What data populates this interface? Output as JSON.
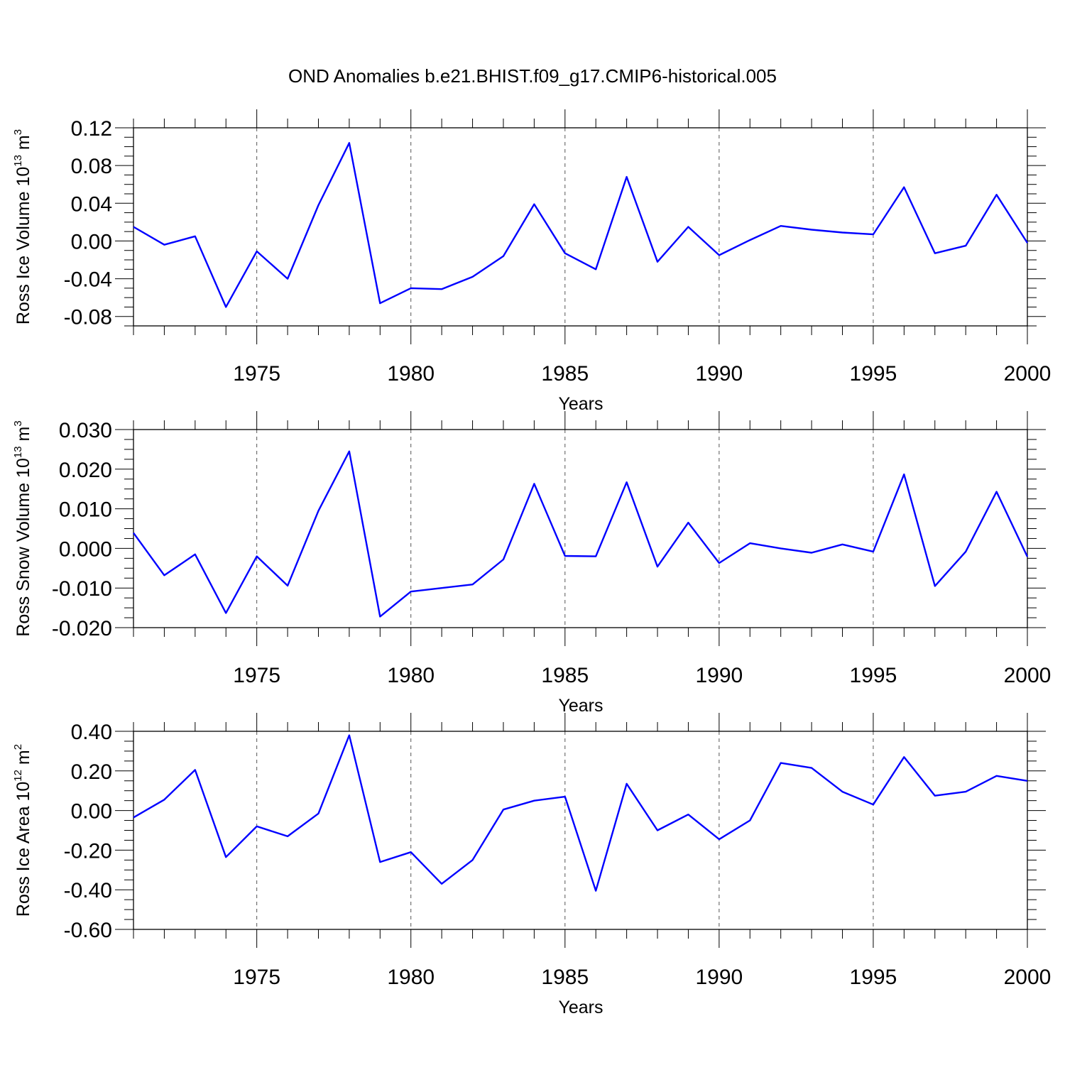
{
  "title": "OND Anomalies b.e21.BHIST.f09_g17.CMIP6-historical.005",
  "colors": {
    "series": "#0000ff",
    "axis": "#000000",
    "grid": "#555555"
  },
  "chart_data": [
    {
      "type": "line",
      "ylabel": {
        "text": "Ross Ice Volume 10",
        "sup": "13",
        "unit": " m",
        "unit_sup": "3"
      },
      "xlabel": "Years",
      "xlim": [
        1971,
        2000
      ],
      "ylim": [
        -0.09,
        0.12
      ],
      "yticks": [
        -0.08,
        -0.04,
        0.0,
        0.04,
        0.08,
        0.12
      ],
      "ytick_labels": [
        "-0.08",
        "-0.04",
        "0.00",
        "0.04",
        "0.08",
        "0.12"
      ],
      "xticks": [
        1975,
        1980,
        1985,
        1990,
        1995,
        2000
      ],
      "xtick_labels": [
        "1975",
        "1980",
        "1985",
        "1990",
        "1995",
        "2000"
      ],
      "grid": "dashed vertical at major x ticks",
      "x": [
        1971,
        1972,
        1973,
        1974,
        1975,
        1976,
        1977,
        1978,
        1979,
        1980,
        1981,
        1982,
        1983,
        1984,
        1985,
        1986,
        1987,
        1988,
        1989,
        1990,
        1991,
        1992,
        1993,
        1994,
        1995,
        1996,
        1997,
        1998,
        1999,
        2000
      ],
      "y": [
        0.015,
        -0.004,
        0.005,
        -0.07,
        -0.011,
        -0.04,
        0.038,
        0.104,
        -0.066,
        -0.05,
        -0.051,
        -0.038,
        -0.016,
        0.039,
        -0.013,
        -0.03,
        0.068,
        -0.022,
        0.015,
        -0.015,
        0.001,
        0.016,
        0.012,
        0.009,
        0.007,
        0.057,
        -0.013,
        -0.005,
        0.049,
        -0.002
      ]
    },
    {
      "type": "line",
      "ylabel": {
        "text": "Ross Snow Volume 10",
        "sup": "13",
        "unit": " m",
        "unit_sup": "3"
      },
      "xlabel": "Years",
      "xlim": [
        1971,
        2000
      ],
      "ylim": [
        -0.02,
        0.03
      ],
      "yticks": [
        -0.02,
        -0.01,
        0.0,
        0.01,
        0.02,
        0.03
      ],
      "ytick_labels": [
        "-0.020",
        "-0.010",
        "0.000",
        "0.010",
        "0.020",
        "0.030"
      ],
      "xticks": [
        1975,
        1980,
        1985,
        1990,
        1995,
        2000
      ],
      "xtick_labels": [
        "1975",
        "1980",
        "1985",
        "1990",
        "1995",
        "2000"
      ],
      "grid": "dashed vertical at major x ticks",
      "x": [
        1971,
        1972,
        1973,
        1974,
        1975,
        1976,
        1977,
        1978,
        1979,
        1980,
        1981,
        1982,
        1983,
        1984,
        1985,
        1986,
        1987,
        1988,
        1989,
        1990,
        1991,
        1992,
        1993,
        1994,
        1995,
        1996,
        1997,
        1998,
        1999,
        2000
      ],
      "y": [
        0.0039,
        -0.0068,
        -0.0015,
        -0.0163,
        -0.002,
        -0.0094,
        0.0095,
        0.0245,
        -0.0172,
        -0.0109,
        -0.01,
        -0.0091,
        -0.0028,
        0.0163,
        -0.0019,
        -0.002,
        0.0167,
        -0.0046,
        0.0065,
        -0.0037,
        0.0013,
        0.0,
        -0.0011,
        0.001,
        -0.0008,
        0.0187,
        -0.0095,
        -0.0008,
        0.0143,
        -0.0021
      ]
    },
    {
      "type": "line",
      "ylabel": {
        "text": "Ross Ice Area 10",
        "sup": "12",
        "unit": " m",
        "unit_sup": "2"
      },
      "xlabel": "Years",
      "xlim": [
        1971,
        2000
      ],
      "ylim": [
        -0.6,
        0.4
      ],
      "yticks": [
        -0.6,
        -0.4,
        -0.2,
        0.0,
        0.2,
        0.4
      ],
      "ytick_labels": [
        "-0.60",
        "-0.40",
        "-0.20",
        "0.00",
        "0.20",
        "0.40"
      ],
      "xticks": [
        1975,
        1980,
        1985,
        1990,
        1995,
        2000
      ],
      "xtick_labels": [
        "1975",
        "1980",
        "1985",
        "1990",
        "1995",
        "2000"
      ],
      "grid": "dashed vertical at major x ticks",
      "x": [
        1971,
        1972,
        1973,
        1974,
        1975,
        1976,
        1977,
        1978,
        1979,
        1980,
        1981,
        1982,
        1983,
        1984,
        1985,
        1986,
        1987,
        1988,
        1989,
        1990,
        1991,
        1992,
        1993,
        1994,
        1995,
        1996,
        1997,
        1998,
        1999,
        2000
      ],
      "y": [
        -0.035,
        0.055,
        0.205,
        -0.235,
        -0.08,
        -0.13,
        -0.015,
        0.38,
        -0.26,
        -0.21,
        -0.37,
        -0.25,
        0.005,
        0.05,
        0.07,
        -0.405,
        0.135,
        -0.1,
        -0.02,
        -0.145,
        -0.05,
        0.24,
        0.215,
        0.095,
        0.03,
        0.27,
        0.075,
        0.095,
        0.175,
        0.15
      ]
    }
  ]
}
